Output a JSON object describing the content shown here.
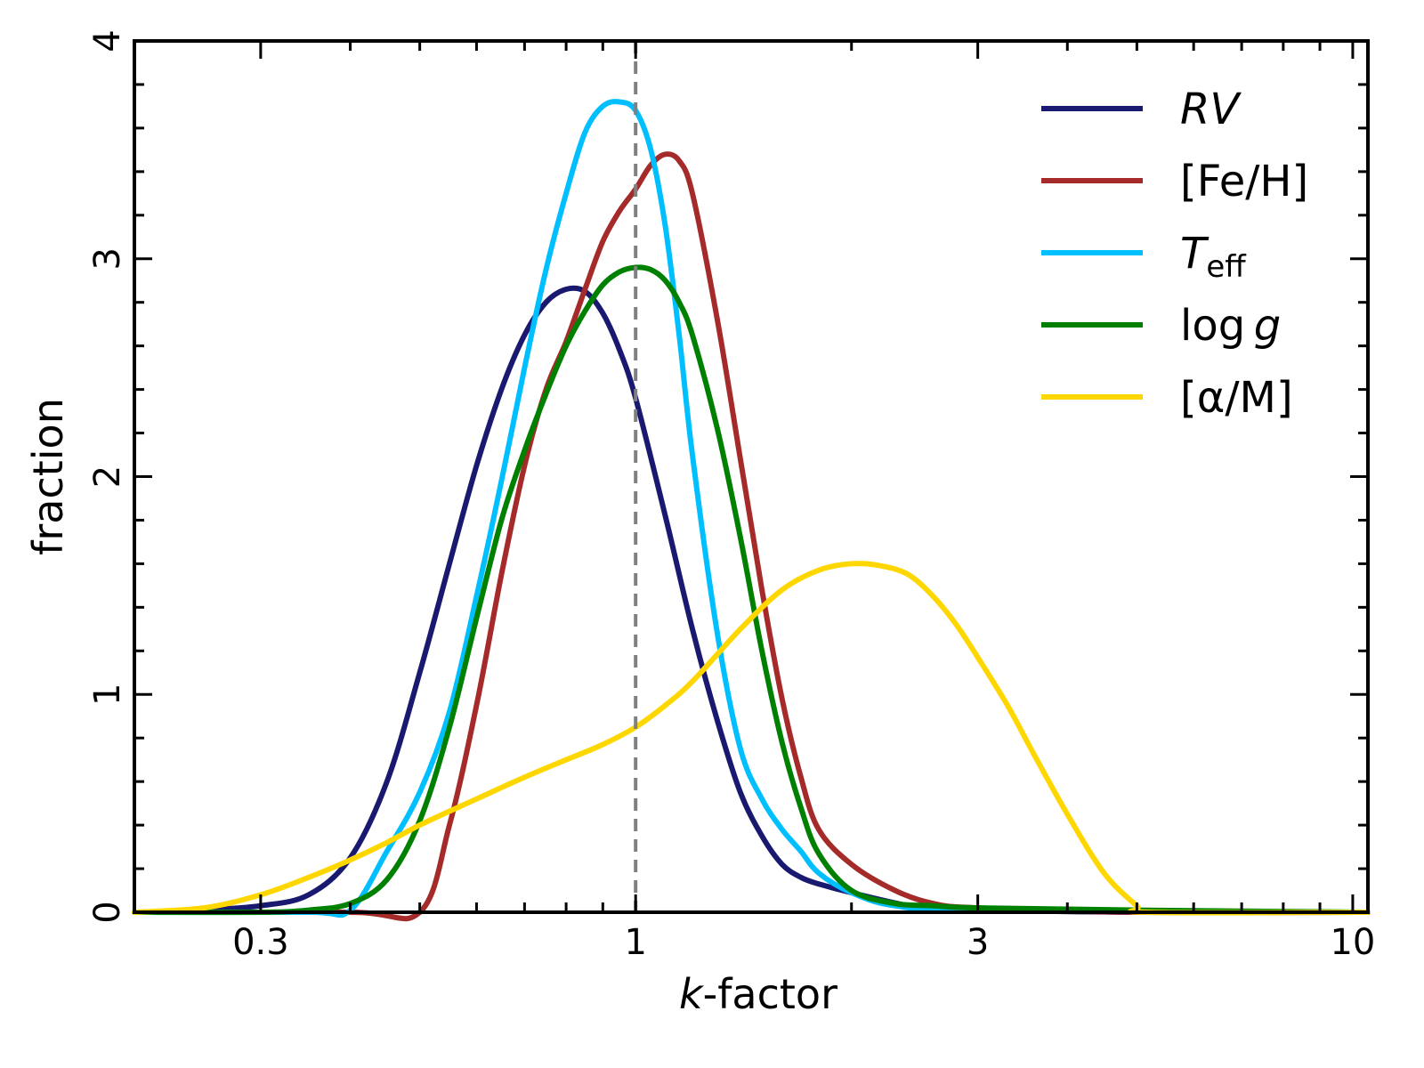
{
  "chart_data": {
    "type": "line",
    "title": "",
    "xlabel": {
      "italic": "k",
      "rest": "-factor"
    },
    "ylabel": "fraction",
    "x_scale": "log",
    "xlim": [
      0.2,
      10.5
    ],
    "ylim": [
      0,
      4
    ],
    "x_ticks": [
      {
        "value": 0.3,
        "label": "0.3"
      },
      {
        "value": 1,
        "label": "1"
      },
      {
        "value": 3,
        "label": "3"
      },
      {
        "value": 10,
        "label": "10"
      }
    ],
    "y_ticks": [
      {
        "value": 0,
        "label": "0"
      },
      {
        "value": 1,
        "label": "1"
      },
      {
        "value": 2,
        "label": "2"
      },
      {
        "value": 3,
        "label": "3"
      },
      {
        "value": 4,
        "label": "4"
      }
    ],
    "reference_line": {
      "x": 1,
      "style": "dashed",
      "color": "#808080"
    },
    "legend_position": "top-right",
    "grid": false,
    "series": [
      {
        "key": "rv",
        "color": "#191970",
        "label_parts": [
          {
            "text": "RV",
            "italic": true
          }
        ],
        "x": [
          0.2,
          0.25,
          0.3,
          0.35,
          0.4,
          0.45,
          0.5,
          0.55,
          0.6,
          0.65,
          0.7,
          0.75,
          0.8,
          0.85,
          0.9,
          0.95,
          1.0,
          1.1,
          1.2,
          1.3,
          1.4,
          1.5,
          1.6,
          1.7,
          1.8,
          2.0,
          2.5,
          3.0,
          5.0,
          10.5
        ],
        "y": [
          0.0,
          0.01,
          0.03,
          0.08,
          0.25,
          0.6,
          1.1,
          1.6,
          2.05,
          2.4,
          2.65,
          2.8,
          2.86,
          2.85,
          2.75,
          2.58,
          2.36,
          1.82,
          1.3,
          0.88,
          0.55,
          0.35,
          0.22,
          0.16,
          0.13,
          0.09,
          0.02,
          0.01,
          0.0,
          0.0
        ]
      },
      {
        "key": "feh",
        "color": "#a52a2a",
        "label_parts": [
          {
            "text": "[Fe/H]",
            "italic": false
          }
        ],
        "x": [
          0.2,
          0.4,
          0.5,
          0.55,
          0.6,
          0.65,
          0.7,
          0.75,
          0.8,
          0.85,
          0.9,
          0.95,
          1.0,
          1.05,
          1.1,
          1.15,
          1.2,
          1.3,
          1.4,
          1.5,
          1.6,
          1.7,
          1.8,
          2.0,
          2.3,
          2.6,
          3.0,
          5.0,
          10.5
        ],
        "y": [
          0.0,
          0.0,
          0.0,
          0.4,
          0.95,
          1.55,
          2.05,
          2.4,
          2.62,
          2.86,
          3.08,
          3.22,
          3.32,
          3.43,
          3.48,
          3.45,
          3.3,
          2.72,
          2.08,
          1.48,
          0.98,
          0.62,
          0.38,
          0.22,
          0.1,
          0.04,
          0.02,
          0.0,
          0.0
        ]
      },
      {
        "key": "teff",
        "color": "#00bfff",
        "label_parts": [
          {
            "text": "T",
            "italic": true
          },
          {
            "text": "eff",
            "italic": false,
            "sub": true
          }
        ],
        "x": [
          0.2,
          0.35,
          0.4,
          0.45,
          0.5,
          0.55,
          0.6,
          0.65,
          0.7,
          0.75,
          0.8,
          0.85,
          0.9,
          0.95,
          1.0,
          1.05,
          1.1,
          1.15,
          1.2,
          1.3,
          1.4,
          1.5,
          1.6,
          1.7,
          1.8,
          2.0,
          2.3,
          3.0,
          10.5
        ],
        "y": [
          0.0,
          0.0,
          0.01,
          0.28,
          0.55,
          0.92,
          1.45,
          1.98,
          2.5,
          2.95,
          3.3,
          3.58,
          3.7,
          3.72,
          3.68,
          3.5,
          3.15,
          2.65,
          2.1,
          1.28,
          0.75,
          0.52,
          0.38,
          0.28,
          0.18,
          0.09,
          0.03,
          0.01,
          0.0
        ]
      },
      {
        "key": "logg",
        "color": "#008000",
        "label_parts": [
          {
            "text": "log ",
            "italic": false
          },
          {
            "text": "g",
            "italic": true
          }
        ],
        "x": [
          0.2,
          0.3,
          0.35,
          0.4,
          0.45,
          0.5,
          0.55,
          0.6,
          0.65,
          0.7,
          0.75,
          0.8,
          0.85,
          0.9,
          0.95,
          1.0,
          1.05,
          1.1,
          1.15,
          1.2,
          1.3,
          1.4,
          1.5,
          1.6,
          1.7,
          1.8,
          2.0,
          2.3,
          2.6,
          3.0,
          5.0,
          10.5
        ],
        "y": [
          0.0,
          0.0,
          0.01,
          0.04,
          0.15,
          0.42,
          0.85,
          1.35,
          1.8,
          2.12,
          2.38,
          2.6,
          2.76,
          2.88,
          2.94,
          2.96,
          2.95,
          2.9,
          2.8,
          2.65,
          2.22,
          1.72,
          1.2,
          0.78,
          0.48,
          0.27,
          0.1,
          0.04,
          0.03,
          0.02,
          0.01,
          0.0
        ]
      },
      {
        "key": "alpha",
        "color": "#ffd700",
        "label_parts": [
          {
            "text": "[α/M]",
            "italic": false
          }
        ],
        "x": [
          0.2,
          0.25,
          0.3,
          0.35,
          0.4,
          0.45,
          0.5,
          0.6,
          0.7,
          0.8,
          0.9,
          1.0,
          1.1,
          1.2,
          1.4,
          1.6,
          1.8,
          2.0,
          2.2,
          2.4,
          2.6,
          2.8,
          3.0,
          3.3,
          3.6,
          4.0,
          4.5,
          5.0,
          5.2,
          10.5
        ],
        "y": [
          0.0,
          0.02,
          0.08,
          0.16,
          0.24,
          0.32,
          0.4,
          0.52,
          0.62,
          0.7,
          0.77,
          0.85,
          0.95,
          1.06,
          1.3,
          1.48,
          1.57,
          1.6,
          1.59,
          1.55,
          1.45,
          1.32,
          1.17,
          0.95,
          0.72,
          0.45,
          0.18,
          0.03,
          0.0,
          0.0
        ]
      }
    ]
  }
}
